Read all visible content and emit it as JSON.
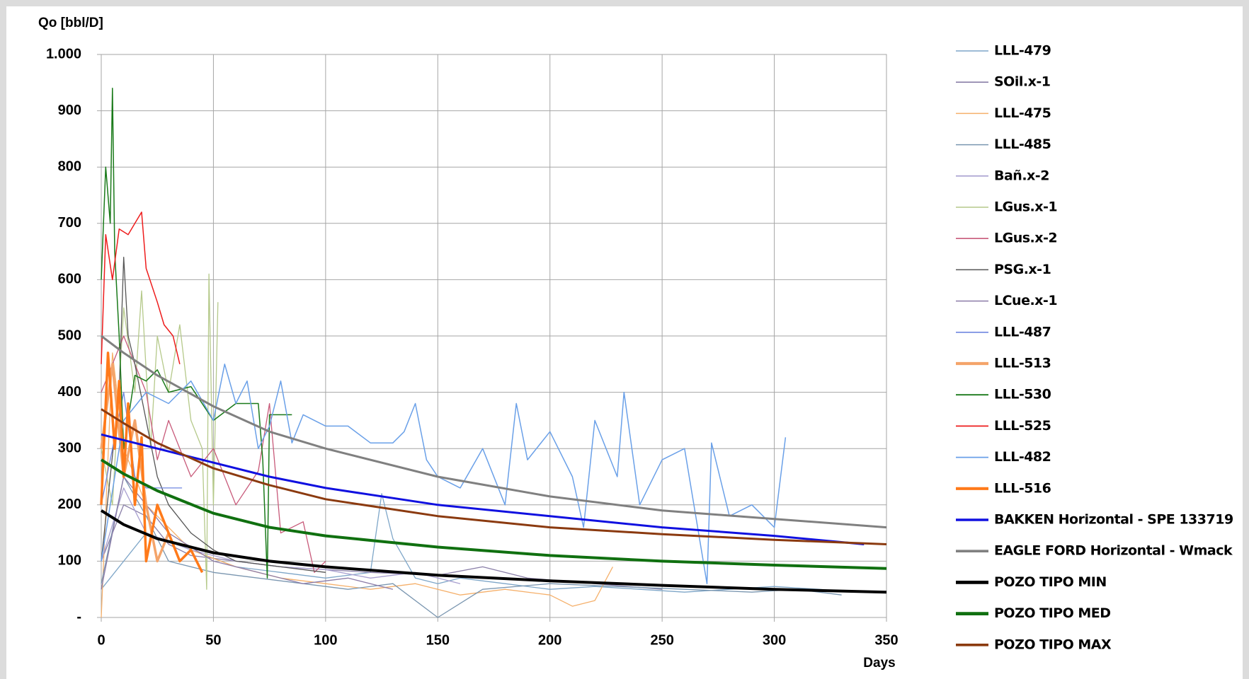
{
  "chart_data": {
    "type": "line",
    "ylabel": "Qo [bbl/D]",
    "xlabel": "Days",
    "xlim": [
      0,
      350
    ],
    "xticks": [
      0,
      50,
      100,
      150,
      200,
      250,
      300,
      350
    ],
    "ylim": [
      0,
      1000
    ],
    "yticks": [
      {
        "value": 0,
        "label": "-"
      },
      100,
      200,
      300,
      400,
      500,
      600,
      700,
      800,
      900,
      {
        "value": 1000,
        "label": "1.000"
      }
    ],
    "grid": true,
    "legend": "right",
    "series": [
      {
        "name": "LLL-479",
        "color": "#7ea6c8",
        "width": 1.3,
        "x": [
          0,
          20,
          40,
          60,
          80,
          100,
          120,
          125,
          130,
          140,
          150,
          160,
          180,
          200,
          220,
          240,
          260,
          280,
          300,
          320,
          335
        ],
        "values": [
          50,
          150,
          120,
          90,
          80,
          70,
          80,
          220,
          140,
          70,
          60,
          70,
          60,
          50,
          55,
          50,
          45,
          50,
          55,
          50,
          45
        ]
      },
      {
        "name": "SOil.x-1",
        "color": "#8a7fa8",
        "width": 1.3,
        "x": [
          0,
          10,
          20,
          30,
          40,
          60,
          80,
          100,
          120,
          150,
          170,
          190,
          220,
          250
        ],
        "values": [
          100,
          200,
          180,
          130,
          110,
          100,
          90,
          85,
          80,
          75,
          90,
          70,
          60,
          50
        ]
      },
      {
        "name": "LLL-475",
        "color": "#f5b06b",
        "width": 1.3,
        "x": [
          0,
          5,
          10,
          20,
          40,
          60,
          80,
          100,
          120,
          140,
          160,
          180,
          200,
          210,
          220,
          228
        ],
        "values": [
          0,
          470,
          300,
          200,
          120,
          90,
          70,
          60,
          50,
          60,
          40,
          50,
          40,
          20,
          30,
          90
        ]
      },
      {
        "name": "LLL-485",
        "color": "#7a96b0",
        "width": 1.3,
        "x": [
          0,
          10,
          20,
          30,
          50,
          70,
          90,
          110,
          130,
          150,
          170,
          200,
          230,
          260,
          290,
          310,
          330
        ],
        "values": [
          60,
          250,
          180,
          100,
          80,
          70,
          60,
          50,
          60,
          0,
          50,
          60,
          55,
          50,
          45,
          50,
          40
        ]
      },
      {
        "name": "Bañ.x-2",
        "color": "#a9a0d0",
        "width": 1.3,
        "x": [
          0,
          10,
          20,
          40,
          60,
          80,
          100,
          120,
          140,
          160
        ],
        "values": [
          100,
          230,
          150,
          120,
          100,
          90,
          85,
          70,
          80,
          60
        ]
      },
      {
        "name": "LGus.x-1",
        "color": "#b5c98a",
        "width": 1.3,
        "x": [
          0,
          5,
          10,
          15,
          18,
          22,
          25,
          30,
          35,
          40,
          45,
          47,
          48,
          50,
          52
        ],
        "values": [
          300,
          200,
          550,
          400,
          580,
          300,
          500,
          400,
          520,
          350,
          300,
          50,
          610,
          200,
          560
        ]
      },
      {
        "name": "LGus.x-2",
        "color": "#c85a7a",
        "width": 1.3,
        "x": [
          0,
          10,
          20,
          25,
          30,
          40,
          50,
          60,
          70,
          75,
          80,
          90,
          95,
          100
        ],
        "values": [
          400,
          500,
          400,
          280,
          350,
          250,
          300,
          200,
          260,
          380,
          150,
          170,
          80,
          100
        ]
      },
      {
        "name": "PSG.x-1",
        "color": "#555555",
        "width": 1.3,
        "x": [
          0,
          8,
          10,
          12,
          15,
          20,
          25,
          30,
          40,
          50,
          60,
          80,
          100
        ],
        "values": [
          100,
          400,
          640,
          500,
          450,
          350,
          250,
          200,
          150,
          120,
          100,
          90,
          80
        ]
      },
      {
        "name": "LCue.x-1",
        "color": "#8c7ca8",
        "width": 1.3,
        "x": [
          0,
          10,
          20,
          30,
          50,
          70,
          90,
          110,
          130
        ],
        "values": [
          50,
          250,
          200,
          150,
          100,
          80,
          60,
          70,
          50
        ]
      },
      {
        "name": "LLL-487",
        "color": "#6f86e0",
        "width": 1.3,
        "x": [
          0,
          10,
          15,
          20,
          25,
          36
        ],
        "values": [
          200,
          400,
          250,
          230,
          230,
          230
        ]
      },
      {
        "name": "LLL-513",
        "color": "#f4a46a",
        "width": 3.5,
        "x": [
          0,
          5,
          10,
          15,
          20,
          25,
          30
        ],
        "values": [
          300,
          450,
          250,
          350,
          200,
          100,
          150
        ]
      },
      {
        "name": "LLL-530",
        "color": "#1a7a1a",
        "width": 1.5,
        "x": [
          0,
          2,
          4,
          5,
          6,
          8,
          10,
          15,
          20,
          25,
          30,
          40,
          50,
          60,
          70,
          72,
          74,
          75,
          85
        ],
        "values": [
          600,
          800,
          700,
          940,
          650,
          500,
          300,
          430,
          420,
          440,
          400,
          410,
          350,
          380,
          380,
          280,
          70,
          360,
          360
        ]
      },
      {
        "name": "LLL-525",
        "color": "#ee1c1c",
        "width": 1.5,
        "x": [
          0,
          2,
          5,
          8,
          12,
          15,
          18,
          20,
          25,
          28,
          32,
          35
        ],
        "values": [
          450,
          680,
          600,
          690,
          680,
          700,
          720,
          620,
          560,
          520,
          500,
          450
        ]
      },
      {
        "name": "LLL-482",
        "color": "#6aa0e8",
        "width": 1.5,
        "x": [
          0,
          10,
          20,
          30,
          40,
          50,
          55,
          60,
          65,
          70,
          75,
          80,
          85,
          90,
          100,
          110,
          120,
          130,
          135,
          140,
          145,
          150,
          160,
          170,
          180,
          185,
          190,
          200,
          210,
          215,
          220,
          230,
          233,
          240,
          250,
          260,
          270,
          272,
          280,
          290,
          300,
          305
        ],
        "values": [
          100,
          350,
          400,
          380,
          420,
          350,
          450,
          380,
          420,
          300,
          340,
          420,
          310,
          360,
          340,
          340,
          310,
          310,
          330,
          380,
          280,
          250,
          230,
          300,
          200,
          380,
          280,
          330,
          250,
          160,
          350,
          250,
          400,
          200,
          280,
          300,
          60,
          310,
          180,
          200,
          160,
          320
        ]
      },
      {
        "name": "LLL-516",
        "color": "#ff7a1a",
        "width": 3.5,
        "x": [
          0,
          3,
          6,
          8,
          10,
          12,
          15,
          18,
          20,
          25,
          30,
          35,
          40,
          45
        ],
        "values": [
          200,
          470,
          300,
          420,
          250,
          380,
          200,
          320,
          100,
          200,
          150,
          100,
          120,
          80
        ]
      },
      {
        "name": "BAKKEN Horizontal - SPE 133719",
        "color": "#1010e0",
        "width": 3,
        "x": [
          0,
          10,
          25,
          50,
          75,
          100,
          150,
          200,
          250,
          300,
          340
        ],
        "values": [
          325,
          315,
          300,
          275,
          250,
          230,
          200,
          180,
          160,
          145,
          130
        ]
      },
      {
        "name": "EAGLE FORD Horizontal - Wmack",
        "color": "#808080",
        "width": 3,
        "x": [
          0,
          10,
          25,
          50,
          75,
          100,
          150,
          200,
          250,
          300,
          350
        ],
        "values": [
          500,
          470,
          430,
          375,
          330,
          300,
          250,
          215,
          190,
          175,
          160
        ]
      },
      {
        "name": "POZO TIPO MIN",
        "color": "#000000",
        "width": 4,
        "x": [
          0,
          10,
          25,
          50,
          75,
          100,
          150,
          200,
          250,
          300,
          350
        ],
        "values": [
          190,
          165,
          140,
          115,
          100,
          90,
          75,
          65,
          57,
          50,
          45
        ]
      },
      {
        "name": "POZO TIPO MED",
        "color": "#107010",
        "width": 4,
        "x": [
          0,
          10,
          25,
          50,
          75,
          100,
          150,
          200,
          250,
          300,
          350
        ],
        "values": [
          280,
          255,
          225,
          185,
          160,
          145,
          125,
          110,
          100,
          93,
          87
        ]
      },
      {
        "name": "POZO TIPO MAX",
        "color": "#8b3a0f",
        "width": 3,
        "x": [
          0,
          10,
          25,
          50,
          75,
          100,
          150,
          200,
          250,
          300,
          350
        ],
        "values": [
          370,
          345,
          310,
          265,
          235,
          210,
          180,
          160,
          148,
          138,
          130
        ]
      }
    ]
  }
}
